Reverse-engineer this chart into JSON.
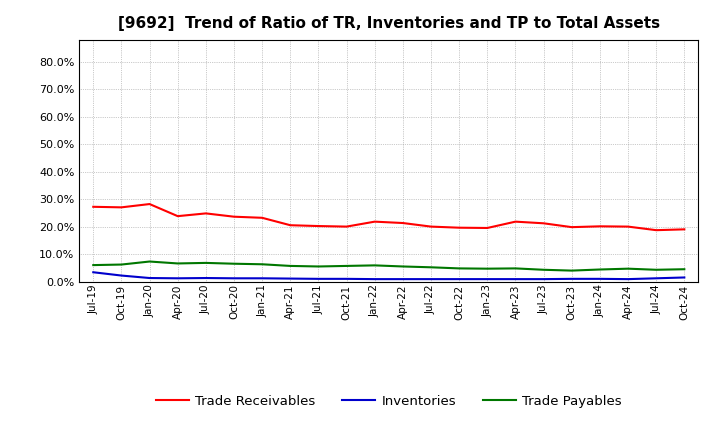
{
  "title": "[9692]  Trend of Ratio of TR, Inventories and TP to Total Assets",
  "title_fontsize": 11,
  "background_color": "#ffffff",
  "plot_bg_color": "#ffffff",
  "grid_color": "#999999",
  "x_labels": [
    "Jul-19",
    "Oct-19",
    "Jan-20",
    "Apr-20",
    "Jul-20",
    "Oct-20",
    "Jan-21",
    "Apr-21",
    "Jul-21",
    "Oct-21",
    "Jan-22",
    "Apr-22",
    "Jul-22",
    "Oct-22",
    "Jan-23",
    "Apr-23",
    "Jul-23",
    "Oct-23",
    "Jan-24",
    "Apr-24",
    "Jul-24",
    "Oct-24"
  ],
  "trade_receivables": [
    0.272,
    0.27,
    0.282,
    0.238,
    0.248,
    0.236,
    0.232,
    0.205,
    0.202,
    0.2,
    0.218,
    0.213,
    0.2,
    0.196,
    0.195,
    0.218,
    0.212,
    0.198,
    0.201,
    0.2,
    0.187,
    0.19
  ],
  "inventories": [
    0.034,
    0.022,
    0.013,
    0.012,
    0.013,
    0.012,
    0.012,
    0.011,
    0.01,
    0.01,
    0.009,
    0.009,
    0.009,
    0.009,
    0.009,
    0.009,
    0.009,
    0.01,
    0.01,
    0.009,
    0.012,
    0.015
  ],
  "trade_payables": [
    0.06,
    0.062,
    0.073,
    0.066,
    0.068,
    0.065,
    0.063,
    0.057,
    0.055,
    0.057,
    0.059,
    0.055,
    0.052,
    0.048,
    0.047,
    0.048,
    0.043,
    0.04,
    0.044,
    0.047,
    0.043,
    0.045
  ],
  "tr_color": "#ff0000",
  "inv_color": "#0000cc",
  "tp_color": "#007700",
  "line_width": 1.5,
  "ylim": [
    0.0,
    0.88
  ],
  "yticks": [
    0.0,
    0.1,
    0.2,
    0.3,
    0.4,
    0.5,
    0.6,
    0.7,
    0.8
  ],
  "legend_labels": [
    "Trade Receivables",
    "Inventories",
    "Trade Payables"
  ],
  "legend_fontsize": 9.5,
  "tick_fontsize": 7.5,
  "ytick_fontsize": 8
}
